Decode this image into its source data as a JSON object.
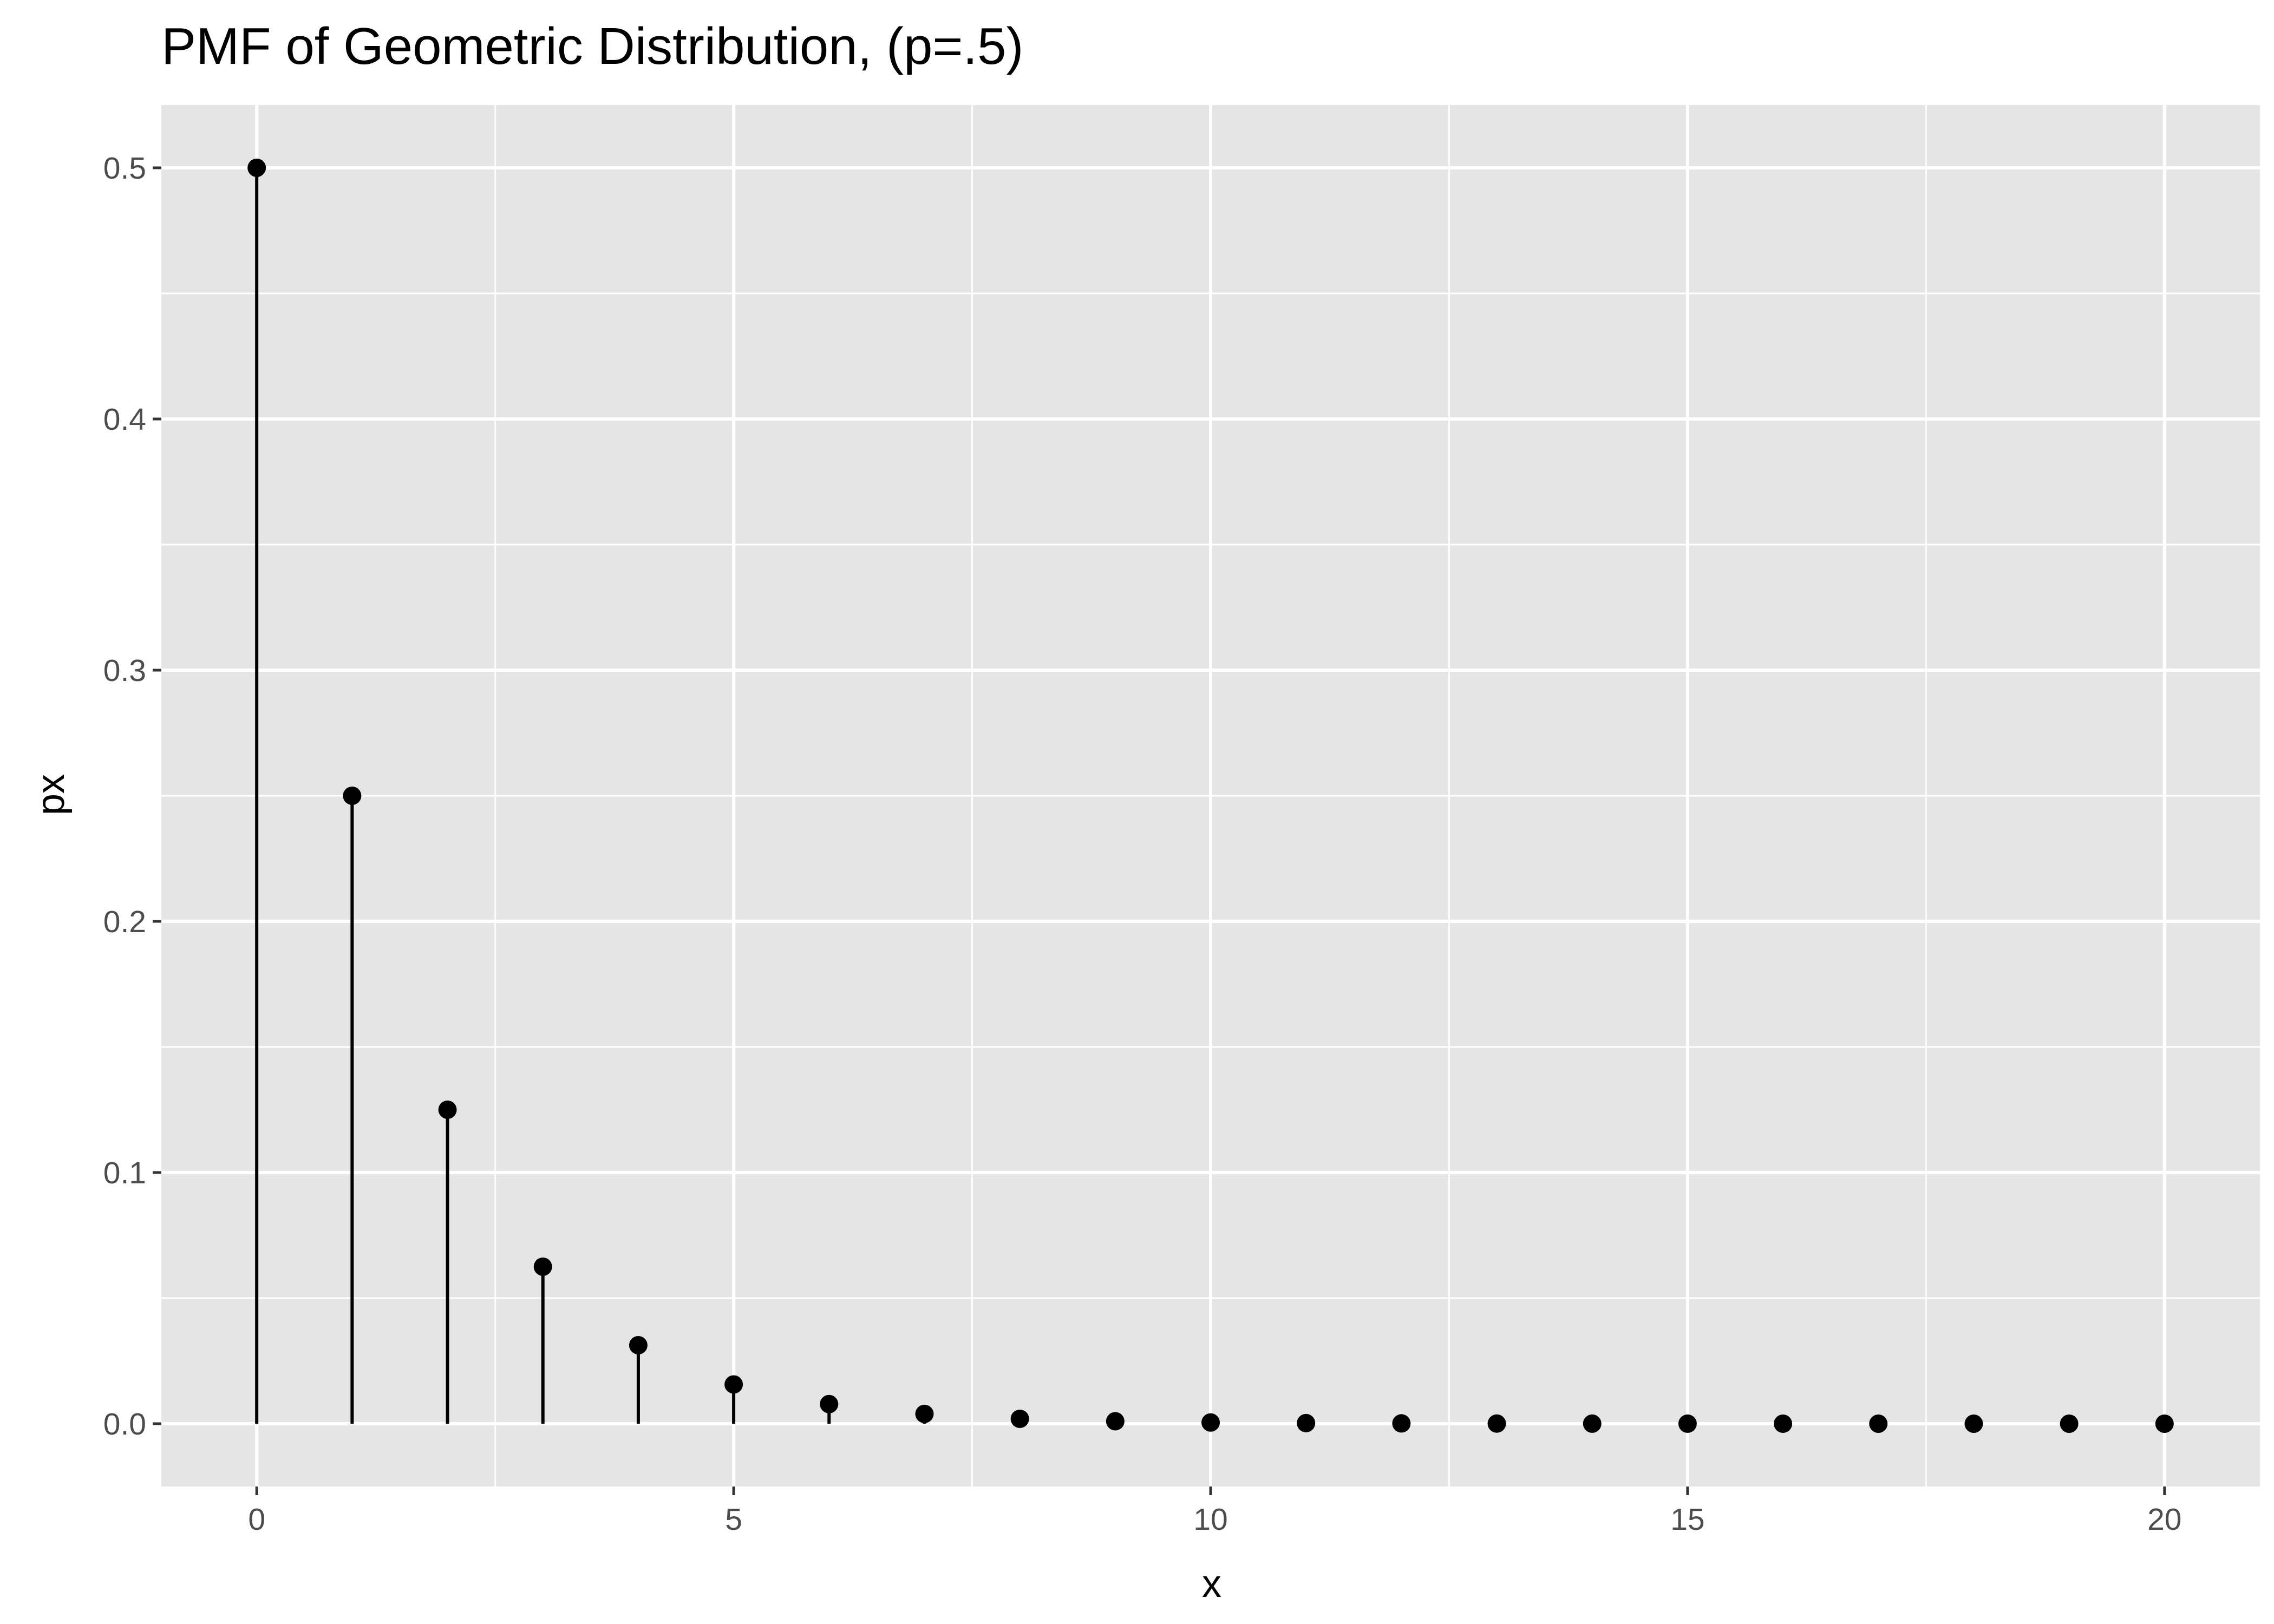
{
  "chart_data": {
    "type": "scatter",
    "title": "PMF of Geometric Distribution, (p=.5)",
    "xlabel": "x",
    "ylabel": "px",
    "xlim": [
      -1,
      21
    ],
    "ylim": [
      -0.025,
      0.525
    ],
    "x_ticks": [
      0,
      5,
      10,
      15,
      20
    ],
    "x_tick_labels": [
      "0",
      "5",
      "10",
      "15",
      "20"
    ],
    "y_ticks": [
      0.0,
      0.1,
      0.2,
      0.3,
      0.4,
      0.5
    ],
    "y_tick_labels": [
      "0.0",
      "0.1",
      "0.2",
      "0.3",
      "0.4",
      "0.5"
    ],
    "grid": true,
    "series": [
      {
        "x": [
          0,
          1,
          2,
          3,
          4,
          5,
          6,
          7,
          8,
          9,
          10,
          11,
          12,
          13,
          14,
          15,
          16,
          17,
          18,
          19,
          20
        ],
        "values": [
          0.5,
          0.25,
          0.125,
          0.0625,
          0.03125,
          0.015625,
          0.0078125,
          0.00390625,
          0.001953125,
          0.0009765625,
          0.00048828125,
          0.000244140625,
          0.0001220703125,
          6.103515625e-05,
          3.0517578125e-05,
          1.52587890625e-05,
          7.62939453125e-06,
          3.814697265625e-06,
          1.9073486328125e-06,
          9.5367431640625e-07,
          4.76837158203125e-07
        ],
        "style": "lollipop"
      }
    ],
    "colors": {
      "panel": "#e5e5e5",
      "grid": "#ffffff",
      "marks": "#000000",
      "tick_text": "#4d4d4d",
      "tick_mark": "#333333"
    }
  }
}
